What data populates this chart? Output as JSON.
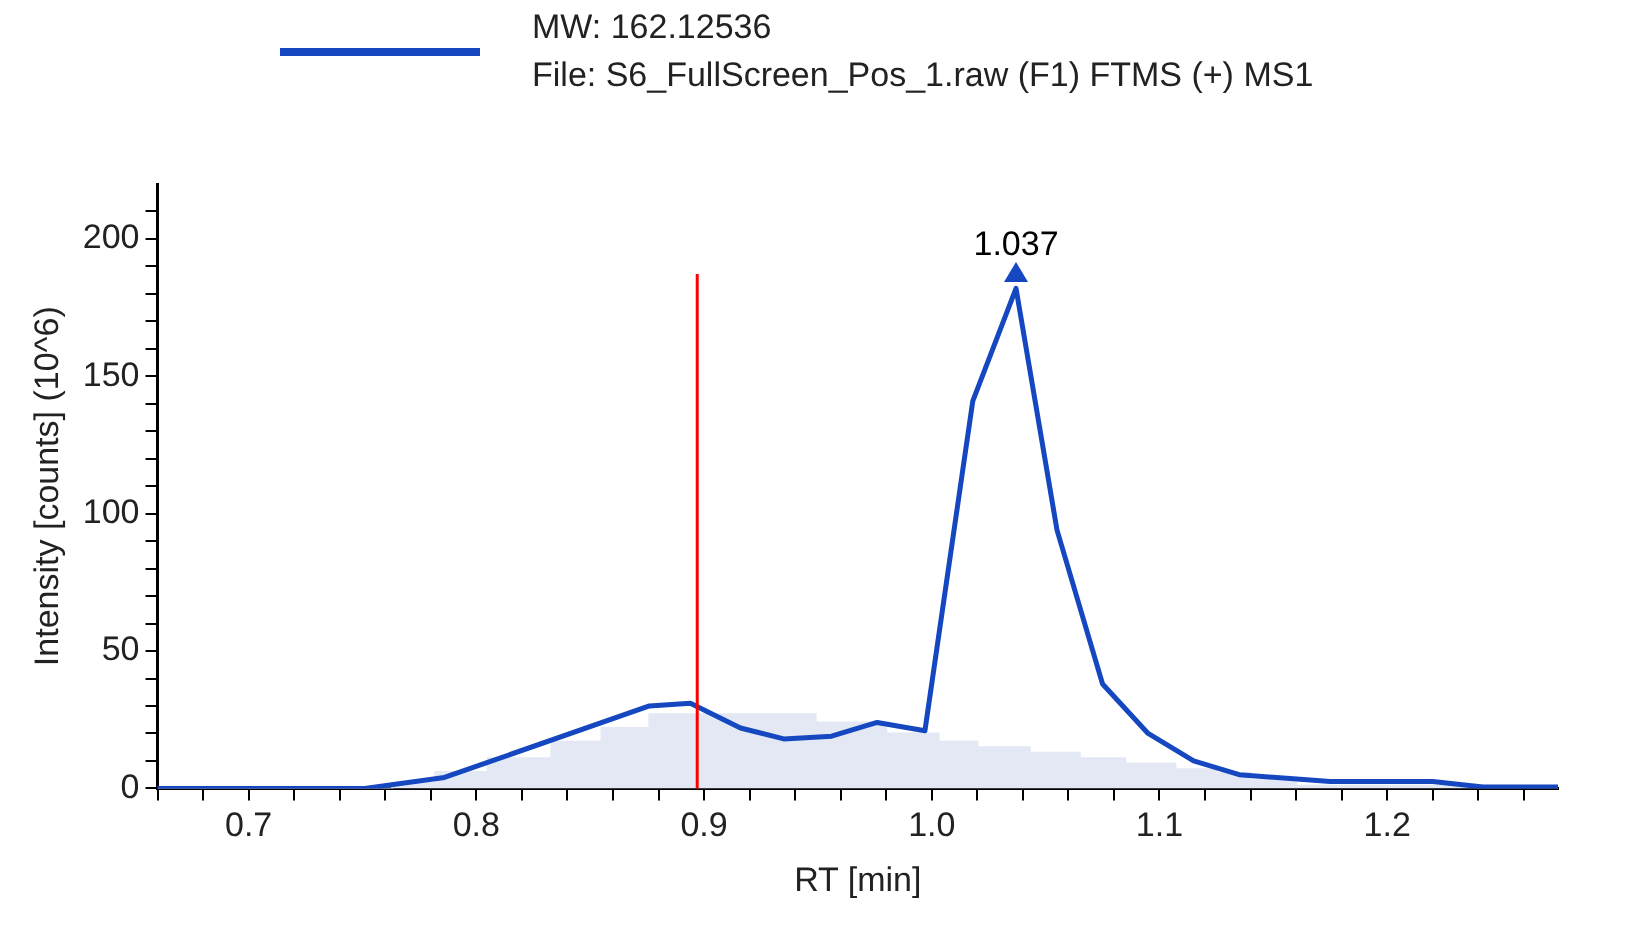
{
  "chart_data": {
    "type": "line",
    "xlabel": "RT [min]",
    "ylabel": "Intensity [counts] (10^6)",
    "legend": "top",
    "xlim": [
      0.66,
      1.275
    ],
    "ylim": [
      0,
      220
    ],
    "xticks": [
      {
        "value": 0.66,
        "label": null
      },
      {
        "value": 0.68,
        "label": null
      },
      0.7,
      {
        "value": 0.72,
        "label": null
      },
      {
        "value": 0.74,
        "label": null
      },
      {
        "value": 0.76,
        "label": null
      },
      {
        "value": 0.78,
        "label": null
      },
      0.8,
      {
        "value": 0.82,
        "label": null
      },
      {
        "value": 0.84,
        "label": null
      },
      {
        "value": 0.86,
        "label": null
      },
      {
        "value": 0.88,
        "label": null
      },
      0.9,
      {
        "value": 0.92,
        "label": null
      },
      {
        "value": 0.94,
        "label": null
      },
      {
        "value": 0.96,
        "label": null
      },
      {
        "value": 0.98,
        "label": null
      },
      {
        "value": 1.0,
        "label": "1.0"
      },
      {
        "value": 1.02,
        "label": null
      },
      {
        "value": 1.04,
        "label": null
      },
      {
        "value": 1.06,
        "label": null
      },
      {
        "value": 1.08,
        "label": null
      },
      1.1,
      {
        "value": 1.12,
        "label": null
      },
      {
        "value": 1.14,
        "label": null
      },
      {
        "value": 1.16,
        "label": null
      },
      {
        "value": 1.18,
        "label": null
      },
      1.2,
      {
        "value": 1.22,
        "label": null
      },
      {
        "value": 1.24,
        "label": null
      },
      {
        "value": 1.26,
        "label": null
      }
    ],
    "yticks": [
      0,
      {
        "value": 10,
        "label": null
      },
      {
        "value": 20,
        "label": null
      },
      {
        "value": 30,
        "label": null
      },
      {
        "value": 40,
        "label": null
      },
      50,
      {
        "value": 60,
        "label": null
      },
      {
        "value": 70,
        "label": null
      },
      {
        "value": 80,
        "label": null
      },
      {
        "value": 90,
        "label": null
      },
      100,
      {
        "value": 110,
        "label": null
      },
      {
        "value": 120,
        "label": null
      },
      {
        "value": 130,
        "label": null
      },
      {
        "value": 140,
        "label": null
      },
      150,
      {
        "value": 160,
        "label": null
      },
      {
        "value": 170,
        "label": null
      },
      {
        "value": 180,
        "label": null
      },
      {
        "value": 190,
        "label": null
      },
      200,
      {
        "value": 210,
        "label": null
      }
    ],
    "series": [
      {
        "type": "area",
        "color": "#e3e8f4",
        "x": [
          0.66,
          0.751,
          0.763,
          0.782,
          0.805,
          0.833,
          0.855,
          0.876,
          0.918,
          0.949,
          0.98,
          1.003,
          1.02,
          1.043,
          1.065,
          1.085,
          1.107,
          1.125,
          1.14,
          1.16,
          1.275
        ],
        "values": [
          0,
          0,
          2,
          6,
          11,
          17,
          22,
          27,
          27,
          24,
          20,
          17,
          15,
          13,
          11,
          9,
          7,
          5.5,
          3,
          1,
          0
        ]
      },
      {
        "name": "MW: 162.12536\nFile: S6_FullScreen_Pos_1.raw (F1) FTMS (+) MS1",
        "color": "#1447c0",
        "x": [
          0.66,
          0.751,
          0.786,
          0.876,
          0.894,
          0.916,
          0.935,
          0.956,
          0.976,
          0.997,
          1.018,
          1.037,
          1.055,
          1.075,
          1.095,
          1.115,
          1.135,
          1.175,
          1.22,
          1.242,
          1.275
        ],
        "values": [
          0,
          0,
          4,
          30,
          31,
          22,
          18,
          19,
          24,
          21,
          141,
          182,
          94,
          38,
          20,
          10,
          5,
          2.5,
          2.5,
          0.5,
          0.5
        ]
      }
    ],
    "ref_lines": [
      {
        "axis": "x",
        "value": 0.897,
        "color": "#ff0000"
      }
    ],
    "annotations": [
      {
        "text": "1.037",
        "x": 1.037,
        "y": 182
      }
    ]
  }
}
